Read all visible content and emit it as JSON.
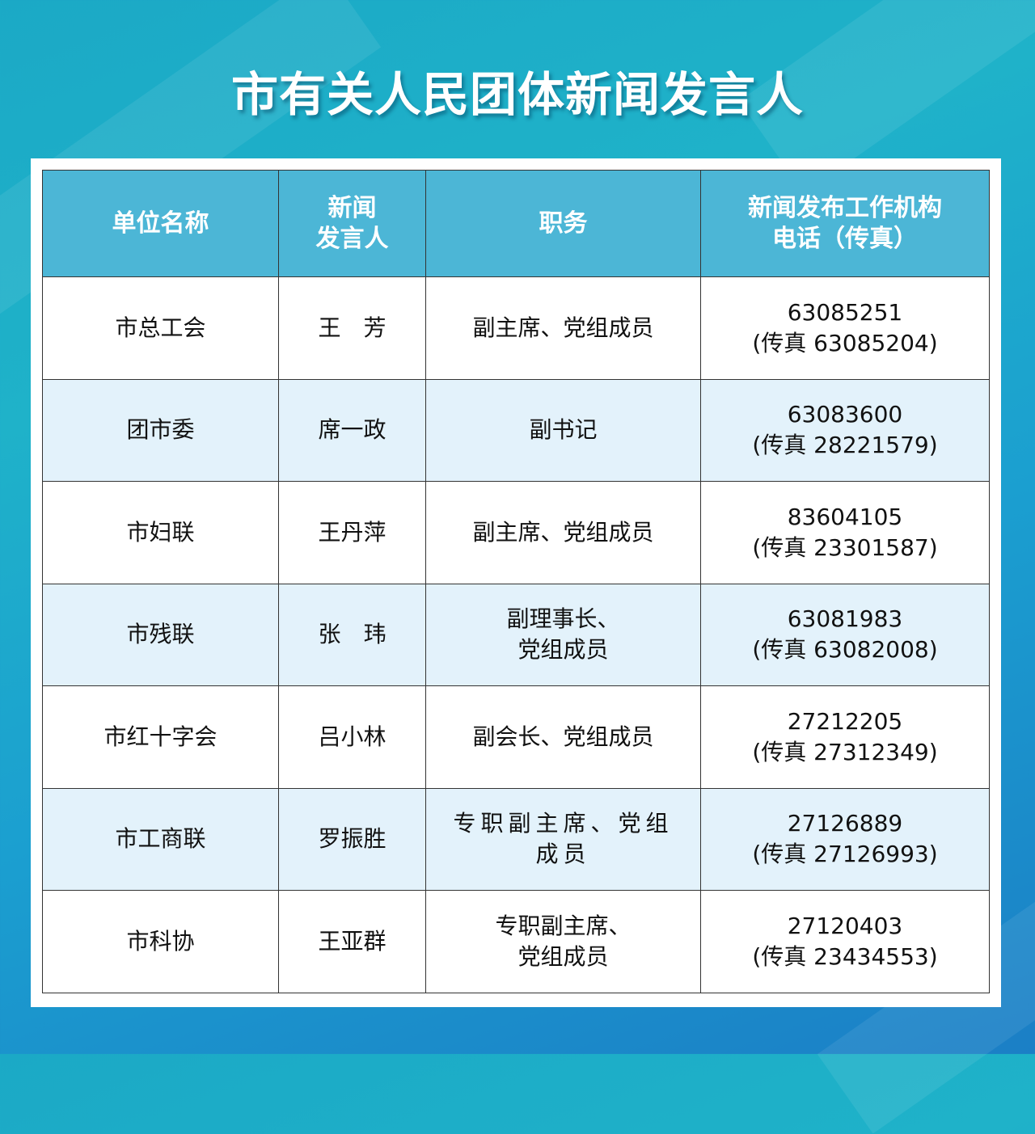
{
  "title": "市有关人民团体新闻发言人",
  "table": {
    "headers": [
      {
        "lines": [
          "单位名称"
        ]
      },
      {
        "lines": [
          "新闻",
          "发言人"
        ]
      },
      {
        "lines": [
          "职务"
        ]
      },
      {
        "lines": [
          "新闻发布工作机构",
          "电话（传真）"
        ]
      }
    ],
    "rows": [
      {
        "unit": "市总工会",
        "spokesperson": "王　芳",
        "position": [
          "副主席、党组成员"
        ],
        "phone": "63085251",
        "fax": "(传真 63085204)"
      },
      {
        "unit": "团市委",
        "spokesperson": "席一政",
        "position": [
          "副书记"
        ],
        "phone": "63083600",
        "fax": "(传真 28221579)"
      },
      {
        "unit": "市妇联",
        "spokesperson": "王丹萍",
        "position": [
          "副主席、党组成员"
        ],
        "phone": "83604105",
        "fax": "(传真 23301587)"
      },
      {
        "unit": "市残联",
        "spokesperson": "张　玮",
        "position": [
          "副理事长、",
          "党组成员"
        ],
        "phone": "63081983",
        "fax": "(传真 63082008)"
      },
      {
        "unit": "市红十字会",
        "spokesperson": "吕小林",
        "position": [
          "副会长、党组成员"
        ],
        "phone": "27212205",
        "fax": "(传真 27312349)"
      },
      {
        "unit": "市工商联",
        "spokesperson": "罗振胜",
        "position": [
          "专职副主席、党组",
          "成员"
        ],
        "phone": "27126889",
        "fax": "(传真 27126993)"
      },
      {
        "unit": "市科协",
        "spokesperson": "王亚群",
        "position": [
          "专职副主席、",
          "党组成员"
        ],
        "phone": "27120403",
        "fax": "(传真 23434553)"
      }
    ]
  }
}
